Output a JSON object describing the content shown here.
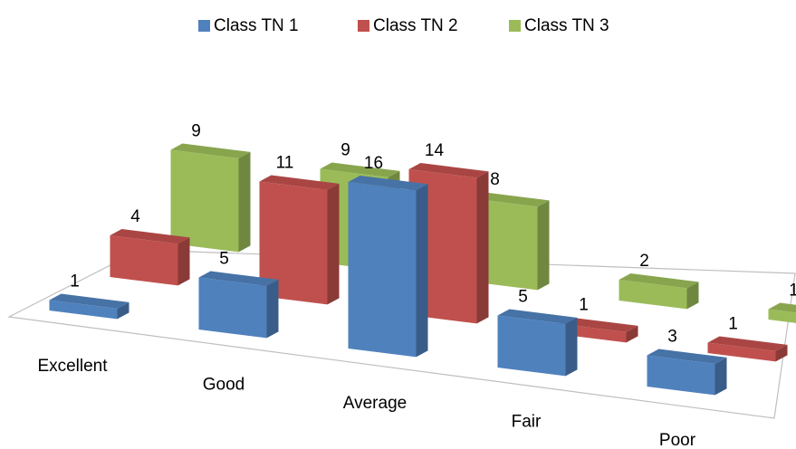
{
  "chart_data": {
    "type": "bar3d",
    "categories": [
      "Excellent",
      "Good",
      "Average",
      "Fair",
      "Poor"
    ],
    "series": [
      {
        "name": "Class TN 1",
        "color": "#4f81bd",
        "values": [
          1,
          5,
          16,
          5,
          3
        ]
      },
      {
        "name": "Class TN 2",
        "color": "#c0504d",
        "values": [
          4,
          11,
          14,
          1,
          1
        ]
      },
      {
        "name": "Class TN 3",
        "color": "#9bbb59",
        "values": [
          9,
          9,
          8,
          2,
          1
        ]
      }
    ],
    "legend": "top"
  }
}
